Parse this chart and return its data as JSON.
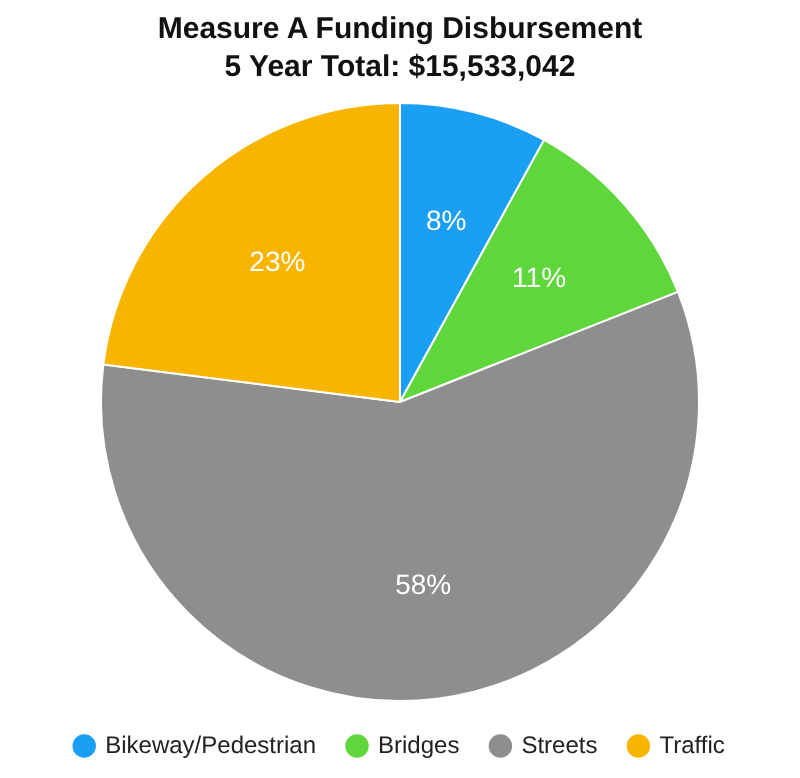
{
  "chart_data": {
    "type": "pie",
    "title": "Measure A Funding Disbursement",
    "subtitle": "5 Year Total: $15,533,042",
    "categories": [
      "Bikeway/Pedestrian",
      "Bridges",
      "Streets",
      "Traffic"
    ],
    "values": [
      8,
      11,
      58,
      23
    ],
    "colors": [
      "#1a9ff5",
      "#5fd63c",
      "#8e8e8e",
      "#f7b500"
    ],
    "value_labels": [
      "8%",
      "11%",
      "58%",
      "23%"
    ],
    "legend": "bottom"
  }
}
